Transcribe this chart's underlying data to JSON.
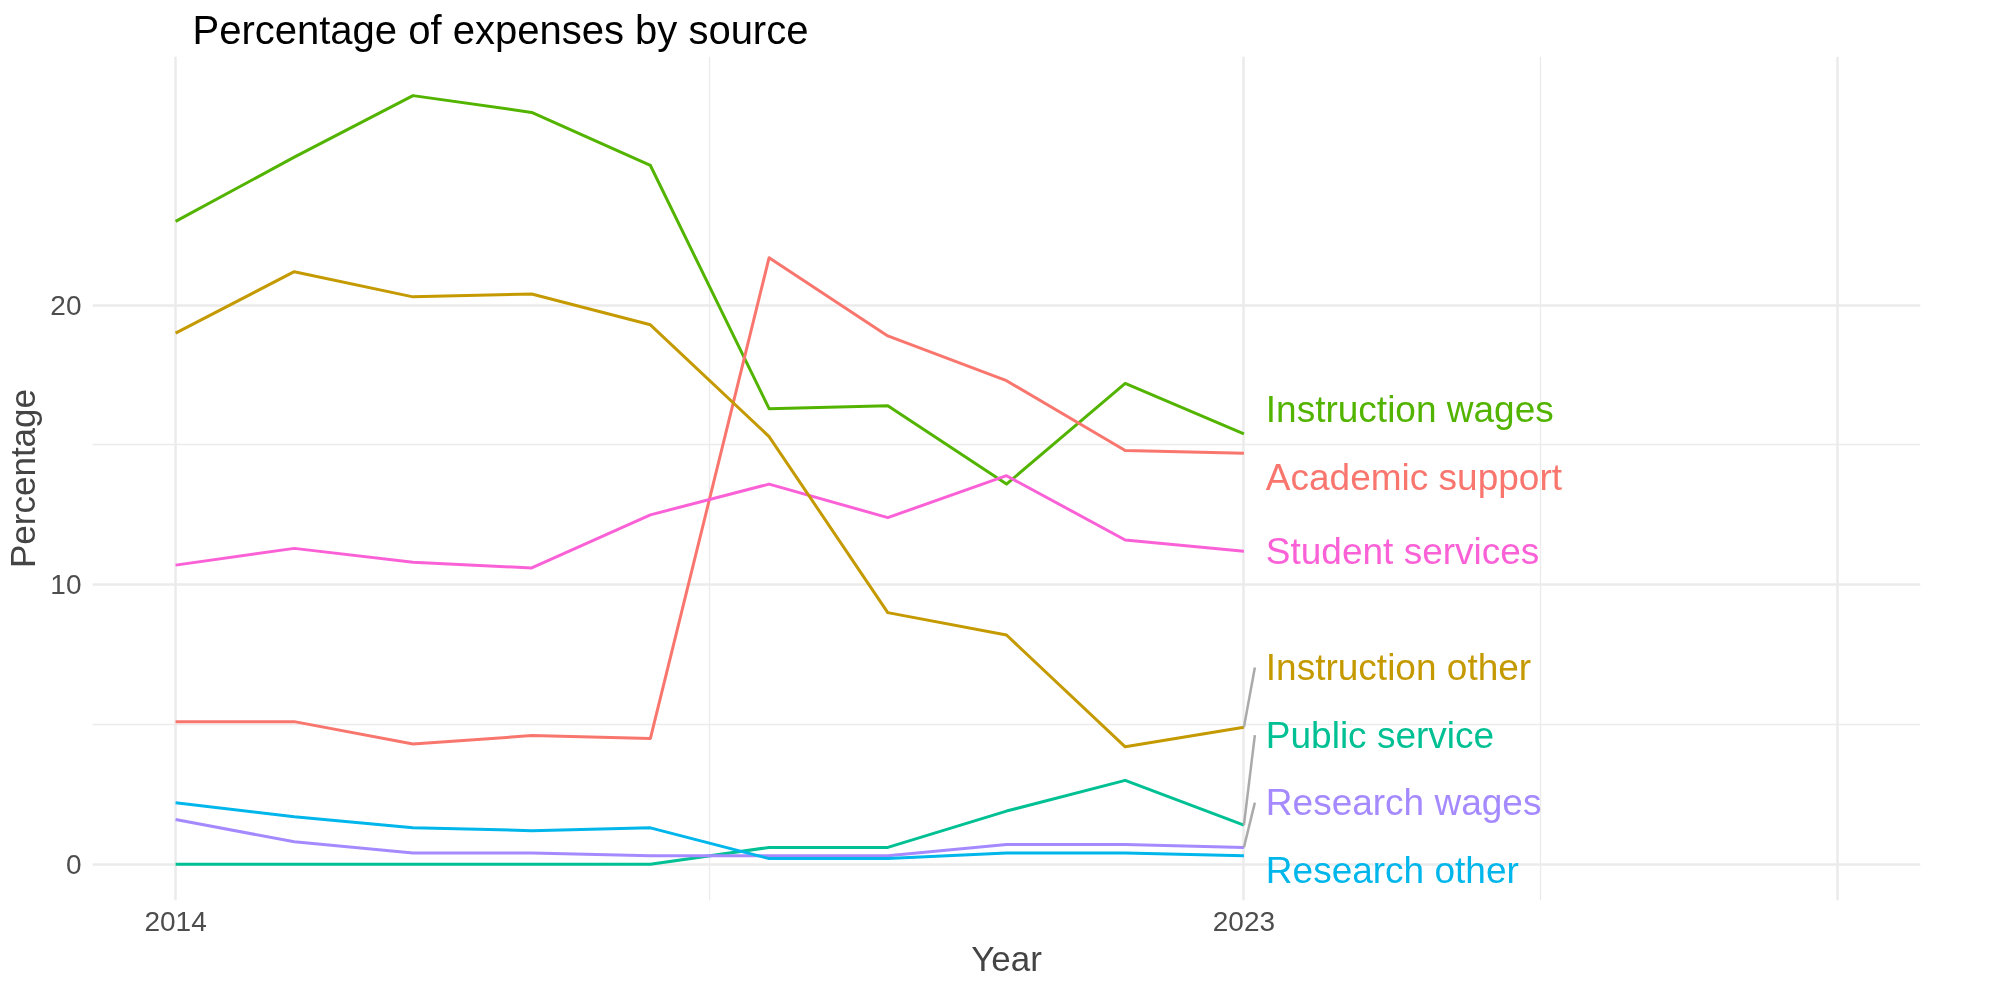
{
  "chart_data": {
    "type": "line",
    "title": "Percentage of expenses by source",
    "xlabel": "Year",
    "ylabel": "Percentage",
    "x": [
      2014,
      2015,
      2016,
      2017,
      2018,
      2019,
      2020,
      2021,
      2022,
      2023
    ],
    "xlim": [
      2013.3,
      2028.7
    ],
    "xticks": [
      2014,
      2023,
      {
        "value": 2028,
        "label": null
      }
    ],
    "ylim": [
      -1.3,
      28.9
    ],
    "yticks": [
      0,
      10,
      20
    ],
    "grid": true,
    "line_style": "solid",
    "marker": "none",
    "series": [
      {
        "name": "Instruction wages",
        "color": "#53b400",
        "values": [
          23.0,
          25.3,
          27.5,
          26.9,
          25.0,
          16.3,
          16.4,
          13.6,
          17.2,
          15.4
        ]
      },
      {
        "name": "Academic support",
        "color": "#f8766d",
        "values": [
          5.1,
          5.1,
          4.3,
          4.6,
          4.5,
          21.7,
          18.9,
          17.3,
          14.8,
          14.7
        ]
      },
      {
        "name": "Student services",
        "color": "#fb61d7",
        "values": [
          10.7,
          11.3,
          10.8,
          10.6,
          12.5,
          13.6,
          12.4,
          13.9,
          11.6,
          11.2
        ]
      },
      {
        "name": "Instruction other",
        "color": "#c49a00",
        "values": [
          19.0,
          21.2,
          20.3,
          20.4,
          19.3,
          15.3,
          9.0,
          8.2,
          4.2,
          4.9
        ]
      },
      {
        "name": "Public service",
        "color": "#00c094",
        "values": [
          0.0,
          0.0,
          0.0,
          0.0,
          0.0,
          0.6,
          0.6,
          1.9,
          3.0,
          1.4
        ]
      },
      {
        "name": "Research wages",
        "color": "#a58aff",
        "values": [
          1.6,
          0.8,
          0.4,
          0.4,
          0.3,
          0.3,
          0.3,
          0.7,
          0.7,
          0.6
        ]
      },
      {
        "name": "Research other",
        "color": "#00b6eb",
        "values": [
          2.2,
          1.7,
          1.3,
          1.2,
          1.3,
          0.2,
          0.2,
          0.4,
          0.4,
          0.3
        ]
      }
    ]
  }
}
